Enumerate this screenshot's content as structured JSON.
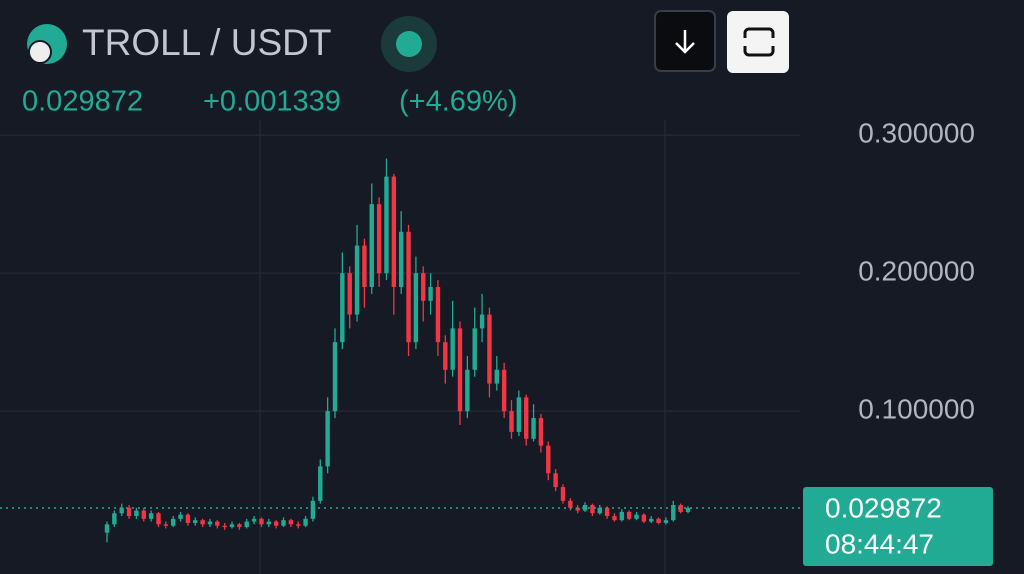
{
  "chart_data": {
    "type": "candlestick",
    "title": "TROLL / USDT",
    "price": 0.029872,
    "change": "+0.001339",
    "change_pct": "(+4.69%)",
    "time": "08:44:47",
    "up_color": "#22ab94",
    "down_color": "#f23645",
    "ylim": [
      -0.018,
      0.311
    ],
    "yticks": [
      {
        "value": 0.1,
        "label": "0.100000"
      },
      {
        "value": 0.2,
        "label": "0.200000"
      },
      {
        "value": 0.3,
        "label": "0.300000"
      }
    ],
    "grid": true,
    "open": [
      0.012,
      0.018,
      0.026,
      0.03,
      0.024,
      0.028,
      0.022,
      0.026,
      0.018,
      0.017,
      0.022,
      0.025,
      0.019,
      0.021,
      0.018,
      0.02,
      0.017,
      0.016,
      0.018,
      0.016,
      0.02,
      0.022,
      0.018,
      0.02,
      0.017,
      0.021,
      0.018,
      0.017,
      0.022,
      0.035,
      0.06,
      0.1,
      0.15,
      0.2,
      0.17,
      0.22,
      0.19,
      0.25,
      0.2,
      0.27,
      0.19,
      0.23,
      0.15,
      0.2,
      0.18,
      0.19,
      0.15,
      0.13,
      0.16,
      0.1,
      0.13,
      0.16,
      0.17,
      0.12,
      0.13,
      0.1,
      0.085,
      0.11,
      0.08,
      0.095,
      0.075,
      0.055,
      0.045,
      0.035,
      0.03,
      0.028,
      0.032,
      0.026,
      0.03,
      0.024,
      0.021,
      0.027,
      0.022,
      0.025,
      0.02,
      0.022,
      0.019,
      0.021,
      0.032,
      0.027
    ],
    "high": [
      0.02,
      0.028,
      0.033,
      0.032,
      0.03,
      0.03,
      0.028,
      0.027,
      0.02,
      0.024,
      0.027,
      0.026,
      0.023,
      0.022,
      0.022,
      0.021,
      0.019,
      0.02,
      0.019,
      0.022,
      0.024,
      0.023,
      0.022,
      0.021,
      0.023,
      0.022,
      0.02,
      0.024,
      0.038,
      0.065,
      0.11,
      0.16,
      0.215,
      0.205,
      0.235,
      0.225,
      0.265,
      0.255,
      0.283,
      0.272,
      0.245,
      0.235,
      0.212,
      0.205,
      0.2,
      0.195,
      0.155,
      0.18,
      0.165,
      0.14,
      0.175,
      0.185,
      0.175,
      0.14,
      0.135,
      0.108,
      0.115,
      0.112,
      0.105,
      0.098,
      0.078,
      0.058,
      0.047,
      0.037,
      0.032,
      0.034,
      0.033,
      0.032,
      0.031,
      0.026,
      0.029,
      0.028,
      0.027,
      0.026,
      0.024,
      0.023,
      0.023,
      0.035,
      0.033,
      0.031
    ],
    "low": [
      0.005,
      0.016,
      0.024,
      0.022,
      0.022,
      0.02,
      0.02,
      0.016,
      0.015,
      0.016,
      0.02,
      0.017,
      0.017,
      0.016,
      0.016,
      0.015,
      0.014,
      0.015,
      0.014,
      0.015,
      0.018,
      0.016,
      0.016,
      0.015,
      0.016,
      0.016,
      0.015,
      0.016,
      0.02,
      0.033,
      0.055,
      0.095,
      0.145,
      0.16,
      0.165,
      0.175,
      0.185,
      0.19,
      0.195,
      0.17,
      0.185,
      0.14,
      0.145,
      0.165,
      0.17,
      0.14,
      0.12,
      0.125,
      0.09,
      0.095,
      0.125,
      0.15,
      0.11,
      0.115,
      0.095,
      0.08,
      0.082,
      0.075,
      0.078,
      0.07,
      0.05,
      0.042,
      0.033,
      0.028,
      0.026,
      0.027,
      0.024,
      0.025,
      0.022,
      0.02,
      0.02,
      0.021,
      0.021,
      0.019,
      0.019,
      0.018,
      0.018,
      0.02,
      0.026,
      0.026
    ],
    "close": [
      0.018,
      0.026,
      0.03,
      0.024,
      0.028,
      0.022,
      0.026,
      0.018,
      0.017,
      0.022,
      0.025,
      0.019,
      0.021,
      0.018,
      0.02,
      0.017,
      0.016,
      0.018,
      0.016,
      0.02,
      0.022,
      0.018,
      0.02,
      0.017,
      0.021,
      0.018,
      0.017,
      0.022,
      0.035,
      0.06,
      0.1,
      0.15,
      0.2,
      0.17,
      0.22,
      0.19,
      0.25,
      0.2,
      0.27,
      0.19,
      0.23,
      0.15,
      0.2,
      0.18,
      0.19,
      0.15,
      0.13,
      0.16,
      0.1,
      0.13,
      0.16,
      0.17,
      0.12,
      0.13,
      0.1,
      0.085,
      0.11,
      0.08,
      0.095,
      0.075,
      0.055,
      0.045,
      0.035,
      0.03,
      0.028,
      0.032,
      0.026,
      0.03,
      0.024,
      0.021,
      0.027,
      0.022,
      0.025,
      0.02,
      0.022,
      0.019,
      0.021,
      0.032,
      0.027,
      0.029872
    ]
  }
}
